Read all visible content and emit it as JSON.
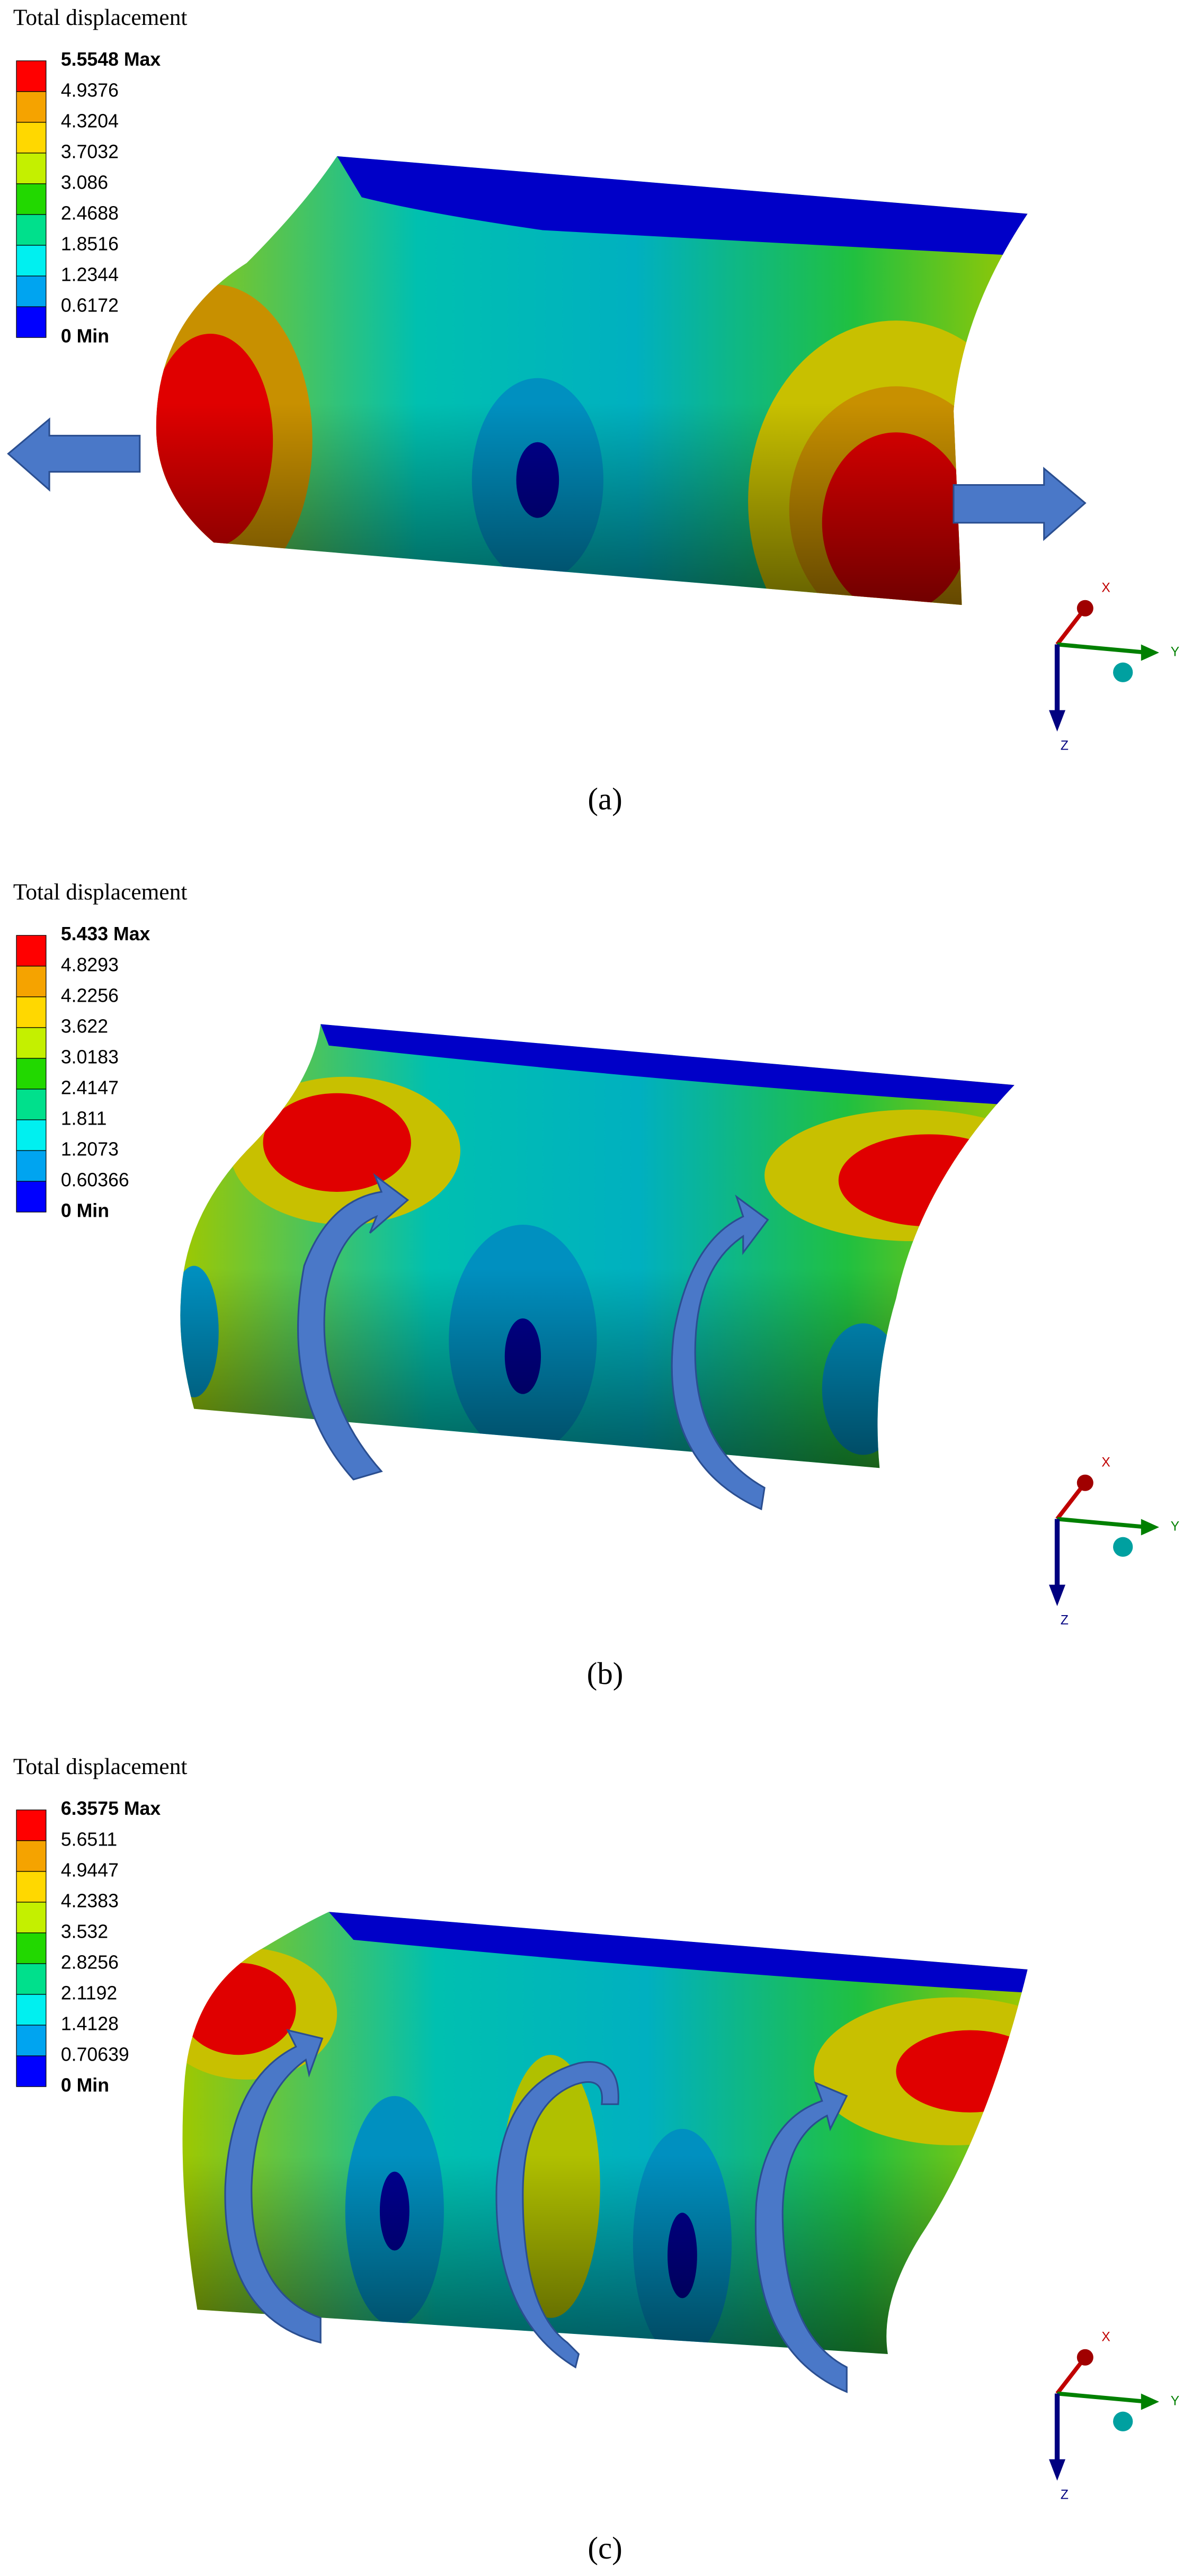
{
  "panels": [
    {
      "title": "Total displacement",
      "legend": [
        "5.5548 Max",
        "4.9376",
        "4.3204",
        "3.7032",
        "3.086",
        "2.4688",
        "1.8516",
        "1.2344",
        "0.6172",
        "0 Min"
      ],
      "axes": {
        "x": "X",
        "y": "Y",
        "z": "Z"
      },
      "caption": "(a)"
    },
    {
      "title": "Total displacement",
      "legend": [
        "5.433 Max",
        "4.8293",
        "4.2256",
        "3.622",
        "3.0183",
        "2.4147",
        "1.811",
        "1.2073",
        "0.60366",
        "0 Min"
      ],
      "axes": {
        "x": "X",
        "y": "Y",
        "z": "Z"
      },
      "caption": "(b)"
    },
    {
      "title": "Total displacement",
      "legend": [
        "6.3575 Max",
        "5.6511",
        "4.9447",
        "4.2383",
        "3.532",
        "2.8256",
        "2.1192",
        "1.4128",
        "0.70639",
        "0 Min"
      ],
      "axes": {
        "x": "X",
        "y": "Y",
        "z": "Z"
      },
      "caption": "(c)"
    }
  ]
}
